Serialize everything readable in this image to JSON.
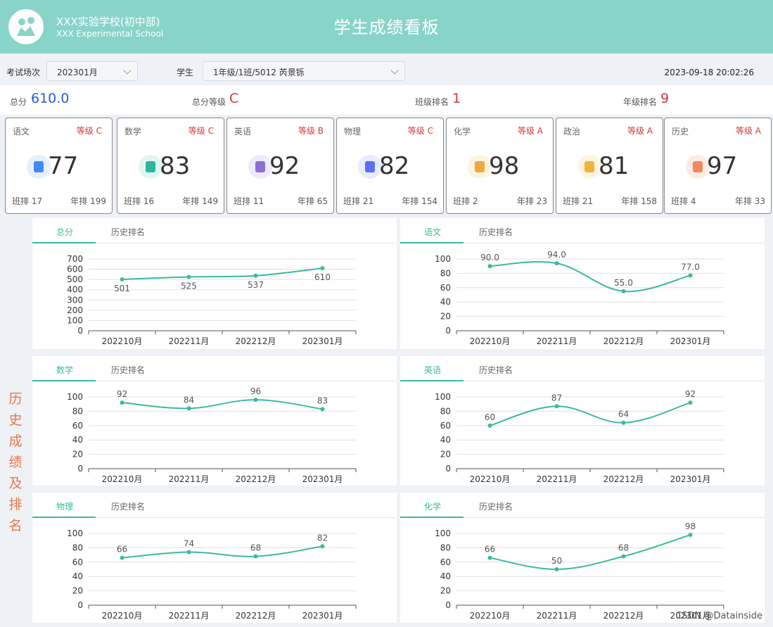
{
  "header": {
    "school_cn": "XXX实验学校(初中部)",
    "school_en": "XXX Experimental School",
    "title": "学生成绩看板",
    "logo_icon": "school-logo-icon"
  },
  "filters": {
    "exam_label": "考试场次",
    "exam_value": "202301月",
    "student_label": "学生",
    "student_value": "1年级/1班/5012 芮景铄",
    "datetime": "2023-09-18 20:02:26"
  },
  "summary": {
    "total_label": "总分",
    "total_value": "610.0",
    "grade_label": "总分等级",
    "grade_value": "C",
    "class_rank_label": "班级排名",
    "class_rank_value": "1",
    "grade_rank_label": "年级排名",
    "grade_rank_value": "9"
  },
  "subjects": [
    {
      "name": "语文",
      "grade": "等级 C",
      "score": "77",
      "class_rank": "班排 17",
      "grade_rank": "年排 199",
      "icon": "chinese-icon",
      "color": "#3d8df5",
      "bg": "#e6f0fd"
    },
    {
      "name": "数学",
      "grade": "等级 C",
      "score": "83",
      "class_rank": "班排 16",
      "grade_rank": "年排 149",
      "icon": "compass-icon",
      "color": "#2bb79a",
      "bg": "#e2f6f1"
    },
    {
      "name": "英语",
      "grade": "等级 B",
      "score": "92",
      "class_rank": "班排  11",
      "grade_rank": "年排 65",
      "icon": "english-icon",
      "color": "#8b6fd6",
      "bg": "#efeafb"
    },
    {
      "name": "物理",
      "grade": "等级 C",
      "score": "82",
      "class_rank": "班排 21",
      "grade_rank": "年排 154",
      "icon": "magnet-icon",
      "color": "#5b6ff2",
      "bg": "#e8ebfd"
    },
    {
      "name": "化学",
      "grade": "等级 A",
      "score": "98",
      "class_rank": "班排 2",
      "grade_rank": "年排 23",
      "icon": "flask-icon",
      "color": "#f2a93b",
      "bg": "#fdf3e3"
    },
    {
      "name": "政治",
      "grade": "等级 A",
      "score": "81",
      "class_rank": "班排 21",
      "grade_rank": "年排 158",
      "icon": "document-icon",
      "color": "#f2b33b",
      "bg": "#fdf4e2"
    },
    {
      "name": "历史",
      "grade": "等级 A",
      "score": "97",
      "class_rank": "班排 4",
      "grade_rank": "年排 33",
      "icon": "temple-icon",
      "color": "#f08a5d",
      "bg": "#fdece4"
    }
  ],
  "side_title": [
    "历",
    "史",
    "成",
    "绩",
    "及",
    "排",
    "名"
  ],
  "tab_history_label": "历史排名",
  "watermark": "CSDN @Datainside",
  "chart_data": [
    {
      "type": "line",
      "tab": "总分",
      "categories": [
        "202210月",
        "202211月",
        "202212月",
        "202301月"
      ],
      "values": [
        501,
        525,
        537,
        610
      ],
      "labels": [
        "501",
        "525",
        "537",
        "610"
      ],
      "yticks": [
        0,
        100,
        200,
        300,
        400,
        500,
        600,
        700
      ],
      "ylim": [
        0,
        700
      ]
    },
    {
      "type": "line",
      "tab": "语文",
      "categories": [
        "202210月",
        "202211月",
        "202212月",
        "202301月"
      ],
      "values": [
        90,
        94,
        55,
        77
      ],
      "labels": [
        "90.0",
        "94.0",
        "55.0",
        "77.0"
      ],
      "yticks": [
        0,
        20,
        40,
        60,
        80,
        100
      ],
      "ylim": [
        0,
        100
      ]
    },
    {
      "type": "line",
      "tab": "数学",
      "categories": [
        "202210月",
        "202211月",
        "202212月",
        "202301月"
      ],
      "values": [
        92,
        84,
        96,
        83
      ],
      "labels": [
        "92",
        "84",
        "96",
        "83"
      ],
      "yticks": [
        0,
        20,
        40,
        60,
        80,
        100
      ],
      "ylim": [
        0,
        100
      ]
    },
    {
      "type": "line",
      "tab": "英语",
      "categories": [
        "202210月",
        "202211月",
        "202212月",
        "202301月"
      ],
      "values": [
        60,
        87,
        64,
        92
      ],
      "labels": [
        "60",
        "87",
        "64",
        "92"
      ],
      "yticks": [
        0,
        20,
        40,
        60,
        80,
        100
      ],
      "ylim": [
        0,
        100
      ]
    },
    {
      "type": "line",
      "tab": "物理",
      "categories": [
        "202210月",
        "202211月",
        "202212月",
        "202301月"
      ],
      "values": [
        66,
        74,
        68,
        82
      ],
      "labels": [
        "66",
        "74",
        "68",
        "82"
      ],
      "yticks": [
        0,
        20,
        40,
        60,
        80,
        100
      ],
      "ylim": [
        0,
        100
      ]
    },
    {
      "type": "line",
      "tab": "化学",
      "categories": [
        "202210月",
        "202211月",
        "202212月",
        "202301月"
      ],
      "values": [
        66,
        50,
        68,
        98
      ],
      "labels": [
        "66",
        "50",
        "68",
        "98"
      ],
      "yticks": [
        0,
        20,
        40,
        60,
        80,
        100
      ],
      "ylim": [
        0,
        100
      ]
    }
  ],
  "colors": {
    "accent": "#3cb9a0",
    "header": "#88d4c9",
    "rank_red": "#d23a3a",
    "total_blue": "#2a5bd7"
  }
}
